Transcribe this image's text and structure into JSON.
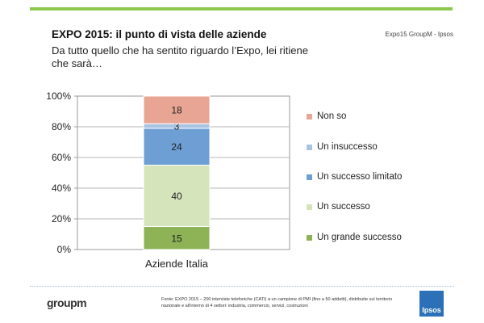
{
  "header": {
    "title": "EXPO 2015: il punto di vista delle aziende",
    "subtitle": "Da tutto quello che ha sentito riguardo l’Expo, lei ritiene che sarà…",
    "source_tag": "Expo15 GroupM - Ipsos"
  },
  "chart_data": {
    "type": "bar",
    "stacked": true,
    "categories": [
      "Aziende Italia"
    ],
    "y_ticks": [
      "0%",
      "20%",
      "40%",
      "60%",
      "80%",
      "100%"
    ],
    "ylim": [
      0,
      100
    ],
    "grid": true,
    "legend_position": "right",
    "series": [
      {
        "name": "Un grande successo",
        "values": [
          15
        ],
        "color": "#8db356"
      },
      {
        "name": "Un successo",
        "values": [
          40
        ],
        "color": "#d6e4bc"
      },
      {
        "name": "Un successo limitato",
        "values": [
          24
        ],
        "color": "#6d9ed4"
      },
      {
        "name": "Un insuccesso",
        "values": [
          3
        ],
        "color": "#a9c3e3"
      },
      {
        "name": "Non so",
        "values": [
          18
        ],
        "color": "#e8a594"
      }
    ]
  },
  "footer": {
    "logo_text": "groupm",
    "note": "Fonte: EXPO 2015 – 200 interviste telefoniche (CATI) a un campione di PMI (fino a 50 addetti), distribuite sul territorio nazionale e all'interno di 4 settori: industria, commercio, servizi, costruzioni",
    "brand_logo": "Ipsos"
  }
}
